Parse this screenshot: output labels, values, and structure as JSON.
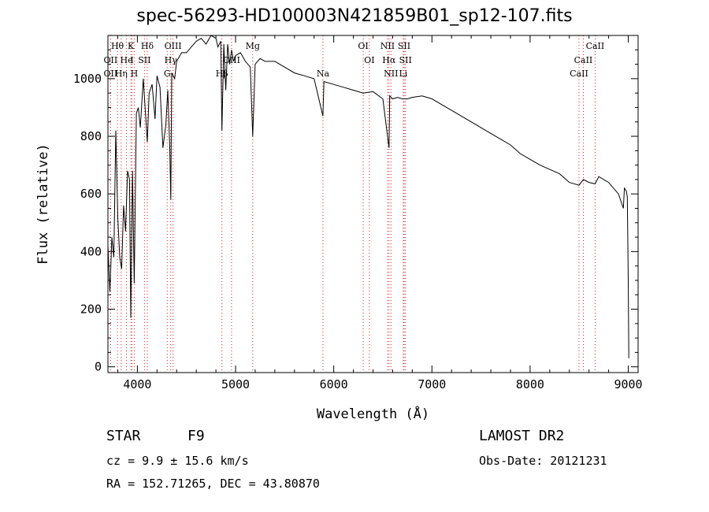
{
  "header": {
    "title": "spec-56293-HD100003N421859B01_sp12-107.fits"
  },
  "footer": {
    "object_class": "STAR",
    "subclass": "F9",
    "survey": "LAMOST DR2",
    "cz": "cz = 9.9 ± 15.6 km/s",
    "obs_date": "Obs-Date: 20121231",
    "radec": "RA = 152.71265, DEC =  43.80870"
  },
  "chart_data": {
    "type": "line",
    "title": "spec-56293-HD100003N421859B01_sp12-107.fits",
    "xlabel": "Wavelength (Å)",
    "ylabel": "Flux (relative)",
    "xlim": [
      3700,
      9100
    ],
    "ylim": [
      -20,
      1150
    ],
    "xticks": [
      4000,
      5000,
      6000,
      7000,
      8000,
      9000
    ],
    "yticks": [
      0,
      200,
      400,
      600,
      800,
      1000
    ],
    "grid": false,
    "line_color": "#000000",
    "marker_color": "#cc2222",
    "spectrum": {
      "x": [
        3700,
        3720,
        3740,
        3760,
        3780,
        3800,
        3820,
        3840,
        3860,
        3880,
        3900,
        3920,
        3933,
        3950,
        3968,
        3990,
        4010,
        4030,
        4060,
        4080,
        4101,
        4120,
        4150,
        4180,
        4200,
        4230,
        4260,
        4290,
        4310,
        4330,
        4340,
        4350,
        4380,
        4400,
        4450,
        4500,
        4550,
        4600,
        4650,
        4700,
        4750,
        4800,
        4820,
        4850,
        4861,
        4880,
        4900,
        4920,
        4940,
        4960,
        4980,
        5000,
        5050,
        5100,
        5150,
        5175,
        5200,
        5250,
        5300,
        5400,
        5500,
        5600,
        5700,
        5800,
        5890,
        5900,
        6000,
        6100,
        6200,
        6300,
        6400,
        6500,
        6563,
        6570,
        6600,
        6650,
        6700,
        6750,
        6800,
        6900,
        7000,
        7100,
        7200,
        7300,
        7400,
        7500,
        7600,
        7700,
        7800,
        7900,
        8000,
        8100,
        8200,
        8300,
        8400,
        8498,
        8542,
        8600,
        8662,
        8700,
        8800,
        8850,
        8900,
        8950,
        8960,
        8980,
        8990,
        9000,
        9005
      ],
      "y": [
        420,
        260,
        450,
        380,
        820,
        520,
        380,
        340,
        560,
        470,
        680,
        650,
        170,
        680,
        290,
        880,
        900,
        830,
        1000,
        890,
        780,
        950,
        980,
        860,
        1010,
        970,
        760,
        840,
        960,
        760,
        580,
        1020,
        1000,
        1060,
        1090,
        1090,
        1110,
        1130,
        1140,
        1120,
        1160,
        1140,
        1110,
        1130,
        820,
        1120,
        960,
        1120,
        1050,
        1100,
        1060,
        1080,
        1090,
        1060,
        1040,
        800,
        1050,
        1070,
        1060,
        1060,
        1040,
        1020,
        1010,
        1000,
        870,
        990,
        980,
        970,
        960,
        950,
        955,
        930,
        760,
        940,
        930,
        935,
        930,
        930,
        935,
        940,
        930,
        910,
        890,
        870,
        850,
        830,
        810,
        790,
        770,
        740,
        720,
        700,
        685,
        670,
        640,
        630,
        650,
        640,
        635,
        660,
        640,
        620,
        600,
        550,
        620,
        610,
        590,
        300,
        30
      ]
    },
    "line_markers": [
      {
        "name": "Hθ",
        "x": 3797,
        "row": 0
      },
      {
        "name": "K",
        "x": 3934,
        "row": 0
      },
      {
        "name": "Hδ",
        "x": 4101,
        "row": 0
      },
      {
        "name": "OIII",
        "x": 4363,
        "row": 0
      },
      {
        "name": "Mg",
        "x": 5175,
        "row": 0
      },
      {
        "name": "OI",
        "x": 6300,
        "row": 0
      },
      {
        "name": "NII",
        "x": 6548,
        "row": 0
      },
      {
        "name": "SII",
        "x": 6717,
        "row": 0
      },
      {
        "name": "CaII",
        "x": 8662,
        "row": 0
      },
      {
        "name": "OII",
        "x": 3727,
        "row": 1
      },
      {
        "name": "He",
        "x": 3889,
        "row": 1
      },
      {
        "name": "I",
        "x": 3945,
        "row": 1
      },
      {
        "name": "SII",
        "x": 4072,
        "row": 1
      },
      {
        "name": "Hγ",
        "x": 4340,
        "row": 1
      },
      {
        "name": "OIII",
        "x": 4959,
        "row": 1
      },
      {
        "name": "OI",
        "x": 6363,
        "row": 1
      },
      {
        "name": "Hα",
        "x": 6563,
        "row": 1
      },
      {
        "name": "SII",
        "x": 6731,
        "row": 1
      },
      {
        "name": "CaII",
        "x": 8542,
        "row": 1
      },
      {
        "name": "OII",
        "x": 3727,
        "row": 2
      },
      {
        "name": "Hη",
        "x": 3835,
        "row": 2
      },
      {
        "name": "H",
        "x": 3968,
        "row": 2
      },
      {
        "name": "G",
        "x": 4304,
        "row": 2
      },
      {
        "name": "Hβ",
        "x": 4861,
        "row": 2
      },
      {
        "name": "Na",
        "x": 5890,
        "row": 2
      },
      {
        "name": "NII",
        "x": 6583,
        "row": 2
      },
      {
        "name": "Li",
        "x": 6708,
        "row": 2
      },
      {
        "name": "CaII",
        "x": 8498,
        "row": 2
      }
    ]
  }
}
